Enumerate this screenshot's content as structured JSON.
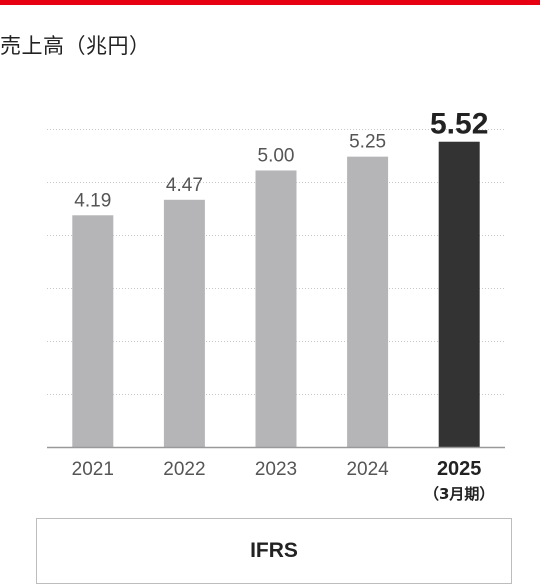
{
  "header": {
    "title": "売上高（兆円）"
  },
  "colors": {
    "accent": "#e60012",
    "bar": "#b5b5b8",
    "highlight_bar": "#333333",
    "baseline": "#999999",
    "grid": "#c8c8c8"
  },
  "chart_data": {
    "type": "bar",
    "title": "売上高（兆円）",
    "xlabel": "",
    "ylabel": "",
    "categories": [
      "2021",
      "2022",
      "2023",
      "2024",
      "2025"
    ],
    "category_notes": [
      "",
      "",
      "",
      "",
      "（3月期）"
    ],
    "values": [
      4.19,
      4.47,
      5.0,
      5.25,
      5.52
    ],
    "value_labels": [
      "4.19",
      "4.47",
      "5.00",
      "5.25",
      "5.52"
    ],
    "highlight_index": 4,
    "ylim": [
      0,
      5.75
    ],
    "grid": true,
    "grid_style": "dotted",
    "grid_lines": 6,
    "legend": "none"
  },
  "footer": {
    "standard": "IFRS"
  }
}
